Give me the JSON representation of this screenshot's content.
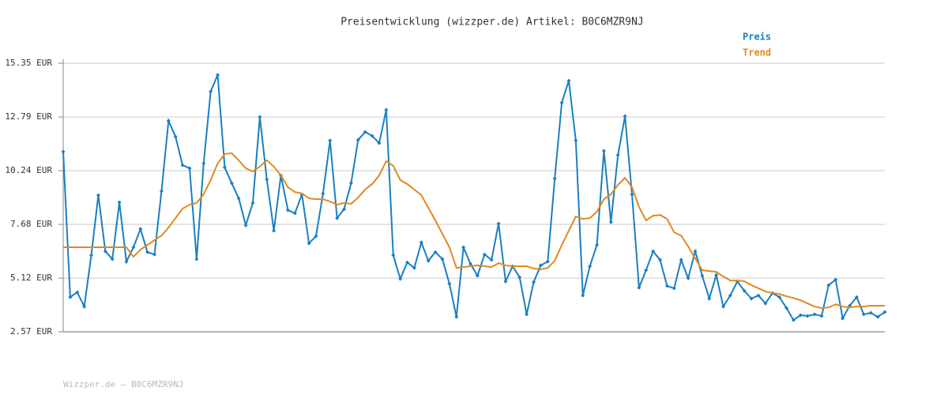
{
  "chart_data": {
    "type": "line",
    "title": "Preisentwicklung (wizzper.de) Artikel: B0C6MZR9NJ",
    "footer": "Wizzper.de – B0C6MZR9NJ",
    "ylim": [
      2.57,
      15.35
    ],
    "yticks": [
      {
        "value": 2.57,
        "label": "2.57 EUR"
      },
      {
        "value": 5.12,
        "label": "5.12 EUR"
      },
      {
        "value": 7.68,
        "label": "7.68 EUR"
      },
      {
        "value": 10.24,
        "label": "10.24 EUR"
      },
      {
        "value": 12.79,
        "label": "12.79 EUR"
      },
      {
        "value": 15.35,
        "label": "15.35 EUR"
      }
    ],
    "grid": true,
    "legend": "top-right",
    "series": [
      {
        "name": "Preis",
        "color": "#1a7fc1",
        "markers": true,
        "values": [
          11.14,
          4.22,
          4.45,
          3.77,
          6.21,
          9.07,
          6.4,
          6.03,
          8.73,
          5.91,
          6.59,
          7.46,
          6.36,
          6.25,
          9.26,
          12.61,
          11.85,
          10.5,
          10.35,
          6.03,
          10.58,
          14.0,
          14.79,
          10.39,
          9.64,
          8.92,
          7.64,
          8.7,
          12.79,
          9.82,
          7.38,
          10.01,
          8.36,
          8.21,
          9.11,
          6.78,
          7.12,
          9.15,
          11.67,
          7.98,
          8.4,
          9.64,
          11.7,
          12.08,
          11.89,
          11.55,
          13.13,
          6.21,
          5.09,
          5.87,
          5.61,
          6.82,
          5.95,
          6.36,
          6.03,
          4.86,
          3.28,
          6.59,
          5.8,
          5.24,
          6.25,
          5.99,
          7.72,
          4.97,
          5.69,
          5.16,
          3.4,
          4.94,
          5.73,
          5.91,
          9.86,
          13.47,
          14.52,
          11.67,
          4.3,
          5.69,
          6.7,
          11.18,
          7.79,
          10.98,
          12.83,
          9.11,
          4.67,
          5.5,
          6.4,
          5.99,
          4.75,
          4.64,
          5.99,
          5.12,
          6.4,
          5.24,
          4.15,
          5.27,
          3.77,
          4.3,
          4.97,
          4.52,
          4.15,
          4.3,
          3.92,
          4.41,
          4.22,
          3.7,
          3.13,
          3.36,
          3.32,
          3.4,
          3.32,
          4.79,
          5.05,
          3.21,
          3.81,
          4.22,
          3.4,
          3.47,
          3.28,
          3.51
        ]
      },
      {
        "name": "Trend",
        "color": "#e08a1e",
        "markers": false,
        "values": [
          6.59,
          6.59,
          6.59,
          6.59,
          6.59,
          6.59,
          6.59,
          6.59,
          6.59,
          6.59,
          6.14,
          6.48,
          6.7,
          6.93,
          7.15,
          7.53,
          7.98,
          8.43,
          8.62,
          8.7,
          9.11,
          9.79,
          10.58,
          11.03,
          11.07,
          10.73,
          10.35,
          10.2,
          10.43,
          10.73,
          10.43,
          10.01,
          9.45,
          9.22,
          9.15,
          8.92,
          8.88,
          8.88,
          8.77,
          8.62,
          8.7,
          8.66,
          8.96,
          9.34,
          9.6,
          10.01,
          10.69,
          10.47,
          9.79,
          9.6,
          9.34,
          9.07,
          8.47,
          7.87,
          7.23,
          6.59,
          5.61,
          5.65,
          5.69,
          5.73,
          5.69,
          5.65,
          5.84,
          5.73,
          5.69,
          5.69,
          5.69,
          5.58,
          5.54,
          5.61,
          5.95,
          6.7,
          7.38,
          8.06,
          7.94,
          7.98,
          8.28,
          8.88,
          9.11,
          9.56,
          9.9,
          9.45,
          8.51,
          7.87,
          8.09,
          8.13,
          7.94,
          7.3,
          7.15,
          6.63,
          6.06,
          5.5,
          5.46,
          5.42,
          5.2,
          5.01,
          5.01,
          4.97,
          4.79,
          4.64,
          4.49,
          4.41,
          4.37,
          4.26,
          4.18,
          4.07,
          3.92,
          3.77,
          3.7,
          3.73,
          3.88,
          3.77,
          3.73,
          3.77,
          3.77,
          3.81,
          3.81,
          3.81
        ]
      }
    ]
  }
}
